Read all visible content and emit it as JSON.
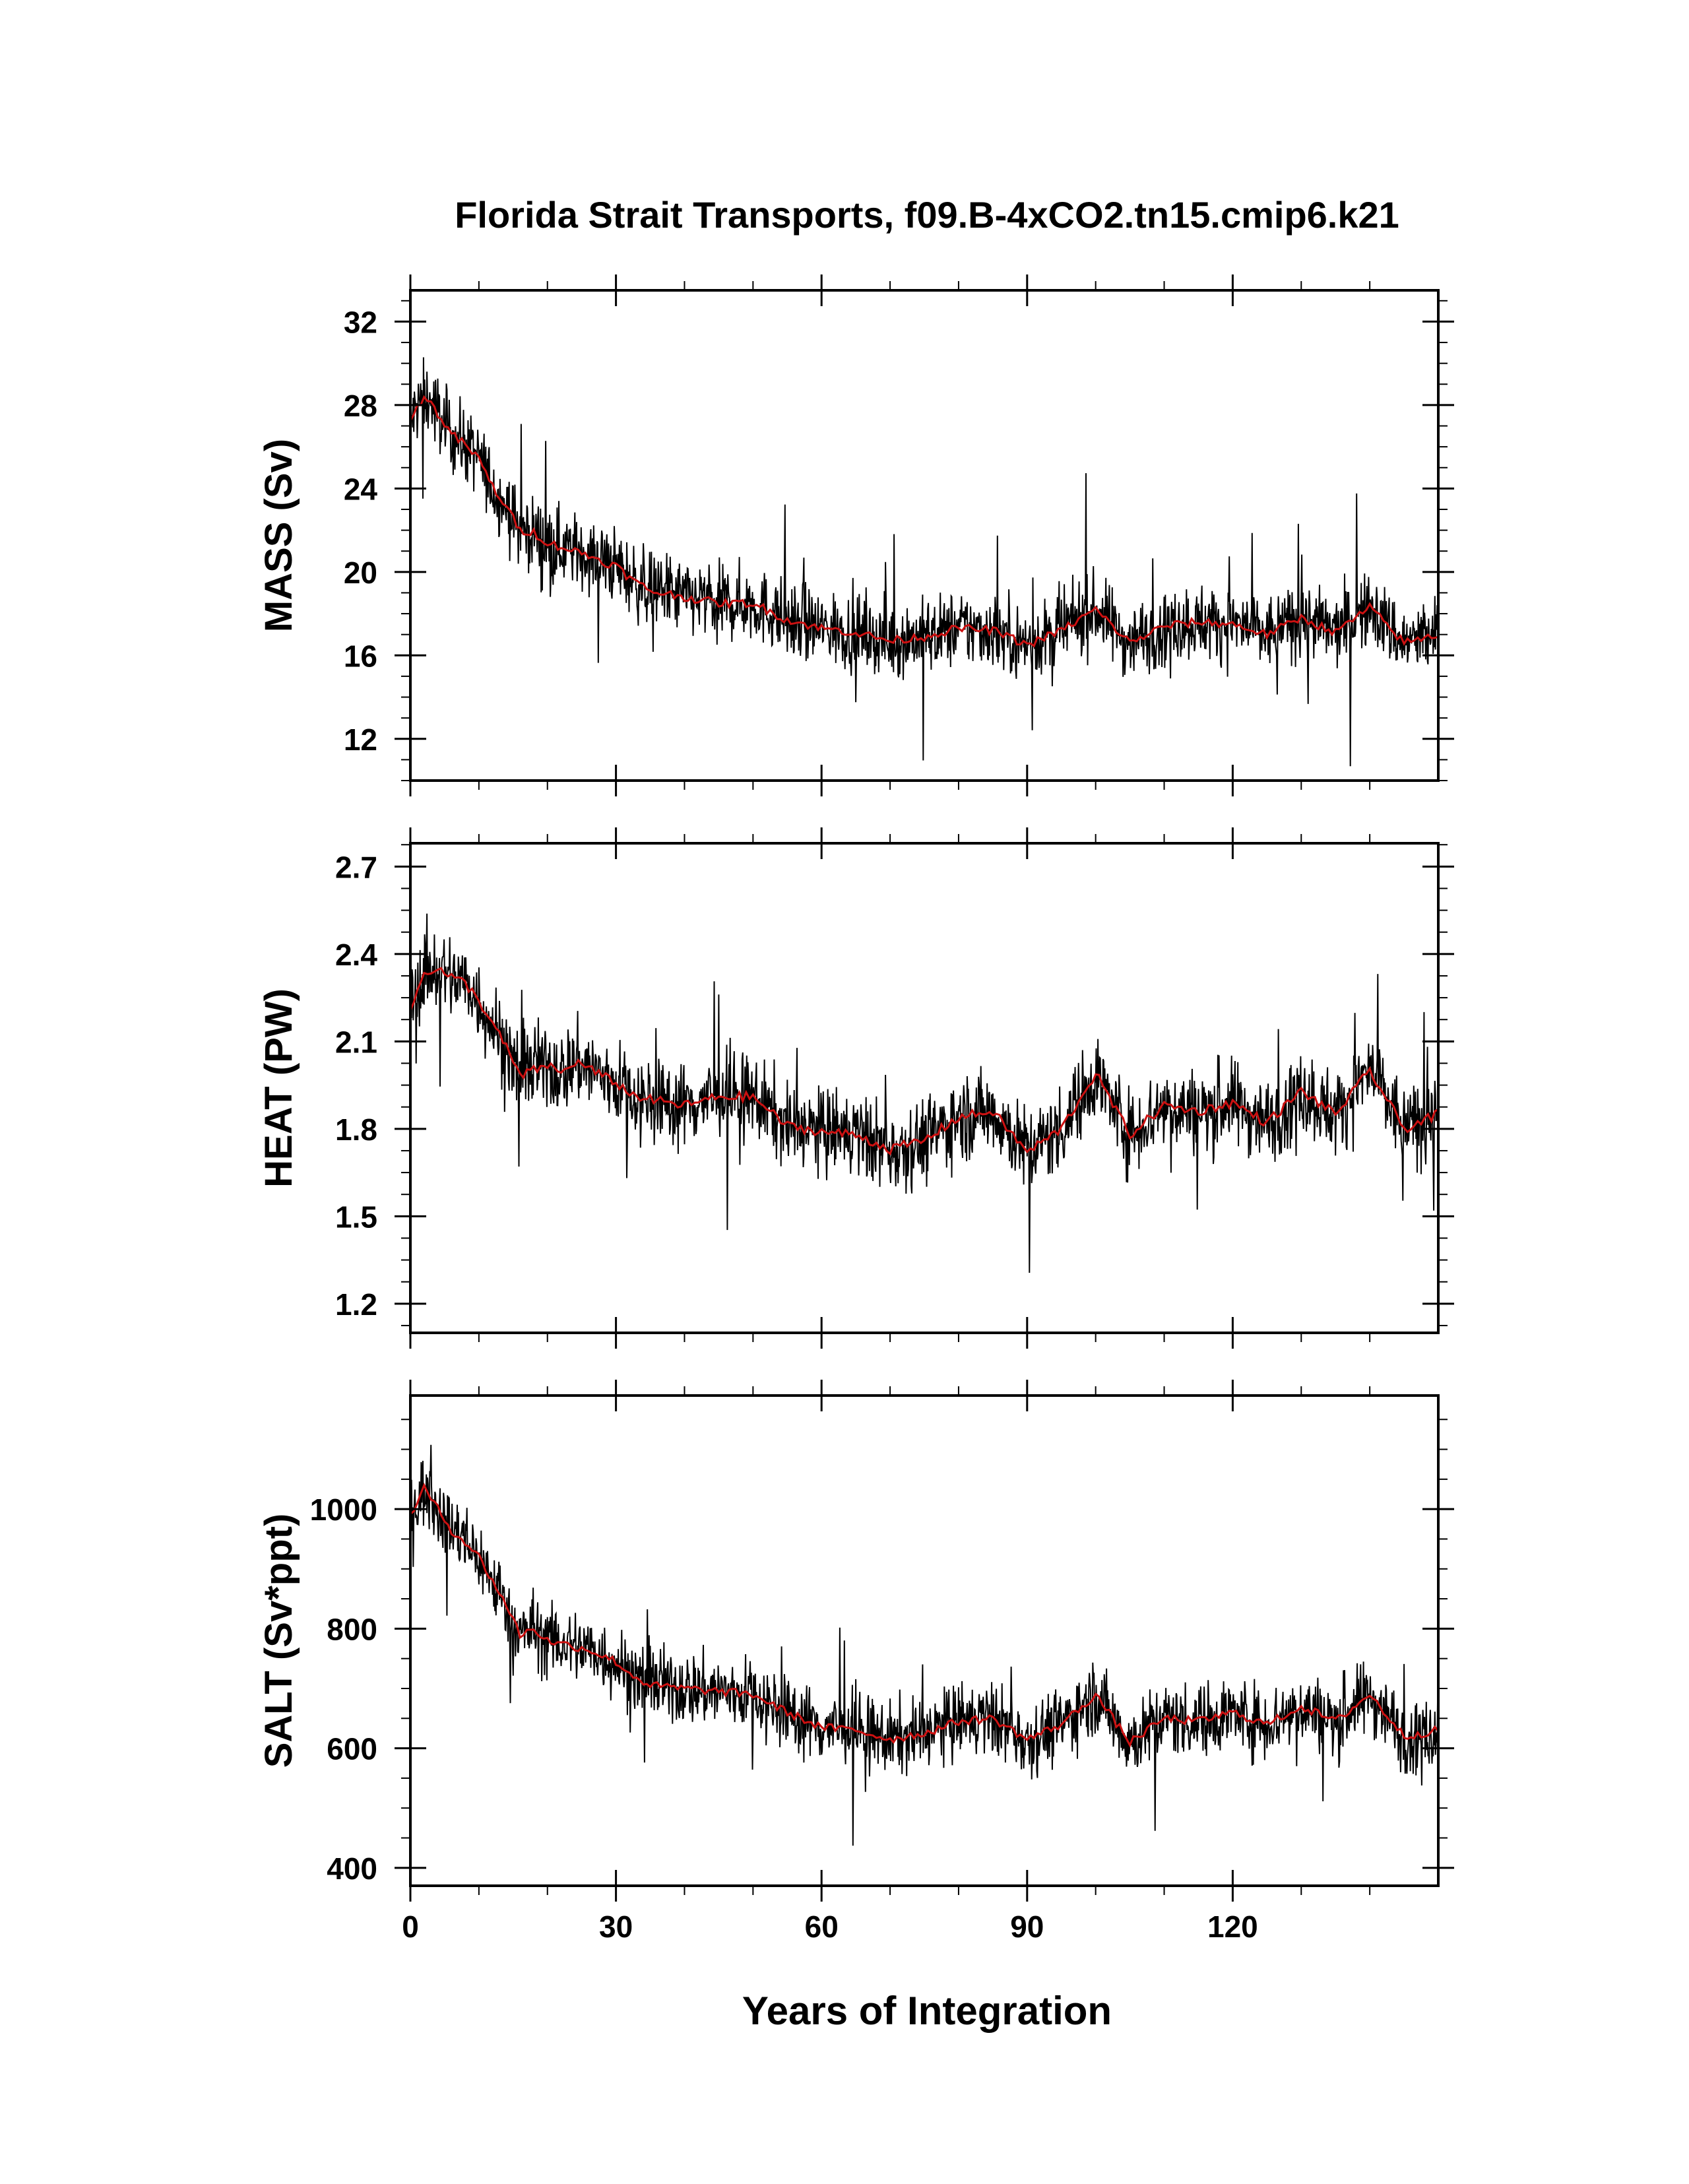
{
  "title": "Florida Strait Transports, f09.B-4xCO2.tn15.cmip6.k21",
  "xlabel": "Years of Integration",
  "colors": {
    "raw": "#000000",
    "smooth": "#cc1111",
    "frame": "#000000"
  },
  "chart_data": [
    {
      "type": "line",
      "panel": "MASS",
      "ylabel": "MASS (Sv)",
      "xlim": [
        0,
        150
      ],
      "ylim": [
        10,
        33.5
      ],
      "yticks": [
        12,
        16,
        20,
        24,
        28,
        32
      ],
      "ytick_labels": [
        "12",
        "16",
        "20",
        "24",
        "28",
        "32"
      ],
      "xticks": [
        0,
        30,
        60,
        90,
        120
      ],
      "xtick_labels": [
        "0",
        "30",
        "60",
        "90",
        "120"
      ],
      "grid": false,
      "series": [
        {
          "style": "monthly",
          "color": "#000000",
          "noise_amplitude": 1.6
        },
        {
          "style": "annual-smoothed",
          "color": "#cc1111",
          "x": [
            0,
            2,
            4,
            6,
            8,
            10,
            12,
            14,
            16,
            18,
            20,
            22,
            24,
            26,
            28,
            30,
            32,
            35,
            40,
            45,
            50,
            55,
            60,
            65,
            70,
            75,
            80,
            85,
            90,
            95,
            100,
            105,
            110,
            115,
            120,
            125,
            130,
            135,
            140,
            145,
            150
          ],
          "y": [
            27.2,
            28.5,
            27.6,
            26.6,
            26.1,
            25.4,
            24.1,
            23.1,
            22.0,
            21.9,
            21.4,
            21.2,
            21.0,
            20.8,
            20.5,
            20.3,
            19.7,
            19.1,
            18.8,
            18.5,
            18.5,
            17.7,
            17.3,
            17.1,
            16.7,
            16.9,
            17.3,
            17.2,
            16.5,
            17.2,
            18.2,
            16.6,
            17.4,
            17.6,
            17.5,
            17.0,
            17.8,
            17.1,
            18.3,
            16.6,
            17.0
          ]
        }
      ]
    },
    {
      "type": "line",
      "panel": "HEAT",
      "ylabel": "HEAT (PW)",
      "xlim": [
        0,
        150
      ],
      "ylim": [
        1.1,
        2.78
      ],
      "yticks": [
        1.2,
        1.5,
        1.8,
        2.1,
        2.4,
        2.7
      ],
      "ytick_labels": [
        "1.2",
        "1.5",
        "1.8",
        "2.1",
        "2.4",
        "2.7"
      ],
      "xticks": [
        0,
        30,
        60,
        90,
        120
      ],
      "xtick_labels": [
        "0",
        "30",
        "60",
        "90",
        "120"
      ],
      "grid": false,
      "series": [
        {
          "style": "monthly",
          "color": "#000000",
          "noise_amplitude": 0.13
        },
        {
          "style": "annual-smoothed",
          "color": "#cc1111",
          "x": [
            0,
            2,
            4,
            6,
            8,
            10,
            12,
            14,
            16,
            18,
            20,
            22,
            24,
            26,
            28,
            30,
            32,
            35,
            40,
            45,
            50,
            55,
            60,
            65,
            70,
            75,
            80,
            85,
            90,
            95,
            100,
            105,
            110,
            115,
            120,
            125,
            130,
            135,
            140,
            145,
            150
          ],
          "y": [
            2.2,
            2.34,
            2.35,
            2.32,
            2.3,
            2.24,
            2.16,
            2.08,
            1.98,
            2.0,
            2.02,
            1.99,
            2.03,
            2.01,
            1.98,
            1.96,
            1.92,
            1.9,
            1.88,
            1.91,
            1.91,
            1.81,
            1.79,
            1.78,
            1.73,
            1.76,
            1.84,
            1.86,
            1.72,
            1.8,
            1.99,
            1.78,
            1.88,
            1.86,
            1.89,
            1.82,
            1.93,
            1.85,
            2.0,
            1.8,
            1.85
          ]
        }
      ]
    },
    {
      "type": "line",
      "panel": "SALT",
      "ylabel": "SALT (Sv*ppt)",
      "xlim": [
        0,
        150
      ],
      "ylim": [
        370,
        1190
      ],
      "yticks": [
        400,
        600,
        800,
        1000
      ],
      "ytick_labels": [
        "400",
        "600",
        "800",
        "1000"
      ],
      "xticks": [
        0,
        30,
        60,
        90,
        120
      ],
      "xtick_labels": [
        "0",
        "30",
        "60",
        "90",
        "120"
      ],
      "grid": false,
      "series": [
        {
          "style": "monthly",
          "color": "#000000",
          "noise_amplitude": 55
        },
        {
          "style": "annual-smoothed",
          "color": "#cc1111",
          "x": [
            0,
            2,
            4,
            6,
            8,
            10,
            12,
            14,
            16,
            18,
            20,
            22,
            24,
            26,
            28,
            30,
            32,
            35,
            40,
            45,
            50,
            55,
            60,
            65,
            70,
            75,
            80,
            85,
            90,
            95,
            100,
            105,
            110,
            115,
            120,
            125,
            130,
            135,
            140,
            145,
            150
          ],
          "y": [
            990,
            1035,
            1000,
            965,
            945,
            920,
            880,
            840,
            790,
            800,
            780,
            775,
            770,
            765,
            755,
            745,
            725,
            705,
            700,
            695,
            690,
            660,
            635,
            630,
            615,
            625,
            645,
            650,
            615,
            640,
            690,
            610,
            650,
            645,
            660,
            640,
            670,
            645,
            690,
            620,
            630
          ]
        }
      ]
    }
  ]
}
